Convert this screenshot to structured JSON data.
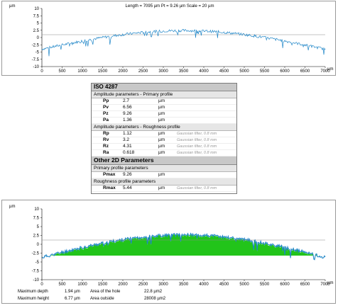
{
  "top_chart": {
    "header": "Length = 7095 µm  Pt = 9.26 µm  Scale = 20 µm",
    "y_unit": "µm",
    "y_ticks": [
      "10",
      "7.5",
      "5",
      "2.5",
      "0",
      "-2.5",
      "-5",
      "-7.5",
      "-10"
    ],
    "x_ticks": [
      "0",
      "500",
      "1000",
      "1500",
      "2000",
      "2500",
      "3000",
      "3500",
      "4000",
      "4500",
      "5000",
      "5500",
      "6000",
      "6500",
      "7000"
    ],
    "x_unit": "µm",
    "colors": {
      "profile": "#1f86c8",
      "axis": "#000000",
      "zero_line": "#8c8c8c"
    }
  },
  "params_table": {
    "title": "ISO 4287",
    "section1": "Amplitude parameters - Primary profile",
    "rows1": [
      {
        "name": "Pp",
        "value": "2.7",
        "unit": "µm",
        "note": ""
      },
      {
        "name": "Pv",
        "value": "6.56",
        "unit": "µm",
        "note": ""
      },
      {
        "name": "Pz",
        "value": "9.26",
        "unit": "µm",
        "note": ""
      },
      {
        "name": "Pa",
        "value": "1.36",
        "unit": "µm",
        "note": ""
      }
    ],
    "section2": "Amplitude parameters - Roughness profile",
    "rows2": [
      {
        "name": "Rp",
        "value": "1.12",
        "unit": "µm",
        "note": "Gaussian filter, 0.8 mm"
      },
      {
        "name": "Rv",
        "value": "3.2",
        "unit": "µm",
        "note": "Gaussian filter, 0.8 mm"
      },
      {
        "name": "Rz",
        "value": "4.31",
        "unit": "µm",
        "note": "Gaussian filter, 0.8 mm"
      },
      {
        "name": "Ra",
        "value": "0.618",
        "unit": "µm",
        "note": "Gaussian filter, 0.8 mm"
      }
    ],
    "other_title": "Other 2D Parameters",
    "section3": "Primary profile parameters",
    "rows3": [
      {
        "name": "Pmax",
        "value": "9.26",
        "unit": "µm",
        "note": ""
      }
    ],
    "section4": "Roughness profile parameters",
    "rows4": [
      {
        "name": "Rmax",
        "value": "5.44",
        "unit": "µm",
        "note": "Gaussian filter, 0.8 mm"
      }
    ]
  },
  "bottom_chart": {
    "y_unit": "µm",
    "y_ticks": [
      "10",
      "7.5",
      "5",
      "2.5",
      "0",
      "-2.5",
      "-5",
      "-7.5",
      "-10"
    ],
    "x_ticks": [
      "0",
      "500",
      "1000",
      "1500",
      "2000",
      "2500",
      "3000",
      "3500",
      "4000",
      "4500",
      "5000",
      "5500",
      "6000",
      "6500",
      "7000"
    ],
    "x_unit": "µm",
    "colors": {
      "profile": "#1f86c8",
      "fill": "#22c41a",
      "axis": "#000000",
      "zero_line": "#8c8c8c"
    },
    "stats": {
      "max_depth_label": "Maximum depth",
      "max_depth_value": "1.94 µm",
      "area_hole_label": "Area of the hole",
      "area_hole_value": "22.8 µm2",
      "max_height_label": "Maximum height",
      "max_height_value": "6.77 µm",
      "area_outside_label": "Area outside",
      "area_outside_value": "28008 µm2"
    }
  }
}
